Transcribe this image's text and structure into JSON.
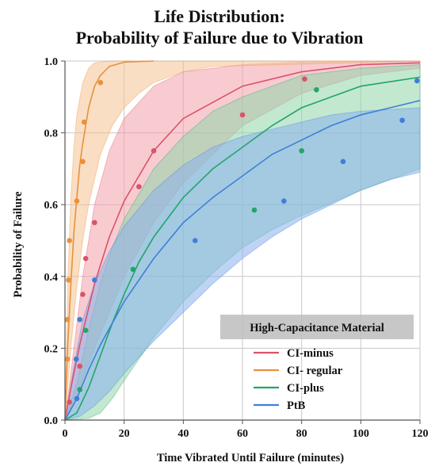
{
  "title": {
    "line1": "Life Distribution:",
    "line2": "Probability of Failure due to Vibration"
  },
  "chart_data": {
    "type": "scatter",
    "title": "Life Distribution: Probability of Failure due to Vibration",
    "xlabel": "Time Vibrated Until Failure (minutes)",
    "ylabel": "Probability of Failure",
    "xlim": [
      0,
      120
    ],
    "ylim": [
      0,
      1.0
    ],
    "xticks": [
      0,
      20,
      40,
      60,
      80,
      100,
      120
    ],
    "yticks": [
      0.0,
      0.2,
      0.4,
      0.6,
      0.8,
      1.0
    ],
    "ytick_labels": [
      "0.0",
      "0.2",
      "0.4",
      "0.6",
      "0.8",
      "1.0"
    ],
    "grid": true,
    "legend": {
      "title": "High-Capacitance Material",
      "placement": "bottom-right"
    },
    "series": [
      {
        "name": "CI-minus",
        "color": "#d9536a",
        "band_color": "#f2a0ac",
        "points": [
          [
            1.5,
            0.05
          ],
          [
            5,
            0.15
          ],
          [
            6,
            0.35
          ],
          [
            7,
            0.45
          ],
          [
            10,
            0.55
          ],
          [
            25,
            0.65
          ],
          [
            30,
            0.75
          ],
          [
            60,
            0.85
          ],
          [
            81,
            0.95
          ]
        ],
        "fit": [
          [
            0,
            0
          ],
          [
            2,
            0.09
          ],
          [
            5,
            0.21
          ],
          [
            10,
            0.38
          ],
          [
            15,
            0.51
          ],
          [
            20,
            0.61
          ],
          [
            30,
            0.75
          ],
          [
            40,
            0.84
          ],
          [
            60,
            0.93
          ],
          [
            80,
            0.97
          ],
          [
            100,
            0.99
          ],
          [
            120,
            0.995
          ]
        ],
        "band_upper": [
          [
            0,
            0
          ],
          [
            3,
            0.2
          ],
          [
            6,
            0.4
          ],
          [
            10,
            0.6
          ],
          [
            15,
            0.75
          ],
          [
            20,
            0.84
          ],
          [
            30,
            0.93
          ],
          [
            40,
            0.97
          ],
          [
            60,
            0.99
          ],
          [
            80,
            0.997
          ],
          [
            120,
            1.0
          ]
        ],
        "band_lower": [
          [
            0,
            0
          ],
          [
            5,
            0.09
          ],
          [
            10,
            0.2
          ],
          [
            20,
            0.4
          ],
          [
            30,
            0.55
          ],
          [
            40,
            0.66
          ],
          [
            60,
            0.82
          ],
          [
            80,
            0.91
          ],
          [
            100,
            0.96
          ],
          [
            120,
            0.98
          ]
        ]
      },
      {
        "name": "CI- regular",
        "color": "#e8913b",
        "band_color": "#f4c391",
        "points": [
          [
            0.8,
            0.17
          ],
          [
            0.8,
            0.28
          ],
          [
            1.2,
            0.39
          ],
          [
            1.5,
            0.5
          ],
          [
            4,
            0.61
          ],
          [
            6,
            0.72
          ],
          [
            6.5,
            0.83
          ],
          [
            12,
            0.94
          ]
        ],
        "fit": [
          [
            0,
            0
          ],
          [
            0.5,
            0.12
          ],
          [
            1,
            0.22
          ],
          [
            2,
            0.38
          ],
          [
            3,
            0.52
          ],
          [
            4,
            0.62
          ],
          [
            5,
            0.71
          ],
          [
            6,
            0.77
          ],
          [
            8,
            0.87
          ],
          [
            10,
            0.93
          ],
          [
            12,
            0.96
          ],
          [
            15,
            0.985
          ],
          [
            20,
            0.997
          ],
          [
            30,
            1.0
          ]
        ],
        "band_upper": [
          [
            0,
            0
          ],
          [
            1,
            0.4
          ],
          [
            2,
            0.62
          ],
          [
            3,
            0.76
          ],
          [
            4,
            0.85
          ],
          [
            6,
            0.94
          ],
          [
            8,
            0.98
          ],
          [
            10,
            0.995
          ],
          [
            15,
            1.0
          ],
          [
            120,
            1.0
          ]
        ],
        "band_lower": [
          [
            0,
            0
          ],
          [
            1,
            0.1
          ],
          [
            2,
            0.2
          ],
          [
            4,
            0.37
          ],
          [
            6,
            0.5
          ],
          [
            8,
            0.6
          ],
          [
            12,
            0.74
          ],
          [
            16,
            0.82
          ],
          [
            20,
            0.87
          ],
          [
            25,
            0.91
          ],
          [
            30,
            0.94
          ],
          [
            40,
            0.97
          ],
          [
            50,
            0.985
          ],
          [
            120,
            1.0
          ]
        ]
      },
      {
        "name": "CI-plus",
        "color": "#23a46c",
        "band_color": "#8fd6a9",
        "points": [
          [
            5,
            0.085
          ],
          [
            7,
            0.25
          ],
          [
            23,
            0.42
          ],
          [
            64,
            0.585
          ],
          [
            80,
            0.75
          ],
          [
            85,
            0.92
          ]
        ],
        "fit": [
          [
            0,
            0
          ],
          [
            4,
            0.02
          ],
          [
            8,
            0.09
          ],
          [
            12,
            0.18
          ],
          [
            16,
            0.27
          ],
          [
            20,
            0.35
          ],
          [
            25,
            0.44
          ],
          [
            30,
            0.51
          ],
          [
            40,
            0.62
          ],
          [
            50,
            0.7
          ],
          [
            60,
            0.76
          ],
          [
            70,
            0.82
          ],
          [
            80,
            0.87
          ],
          [
            90,
            0.9
          ],
          [
            100,
            0.93
          ],
          [
            120,
            0.955
          ]
        ],
        "band_upper": [
          [
            0,
            0
          ],
          [
            4,
            0.1
          ],
          [
            8,
            0.25
          ],
          [
            12,
            0.38
          ],
          [
            16,
            0.48
          ],
          [
            20,
            0.56
          ],
          [
            30,
            0.7
          ],
          [
            40,
            0.79
          ],
          [
            50,
            0.86
          ],
          [
            60,
            0.9
          ],
          [
            80,
            0.96
          ],
          [
            100,
            0.98
          ],
          [
            120,
            0.99
          ]
        ],
        "band_lower": [
          [
            0,
            0
          ],
          [
            8,
            0.005
          ],
          [
            12,
            0.02
          ],
          [
            16,
            0.06
          ],
          [
            20,
            0.11
          ],
          [
            25,
            0.17
          ],
          [
            30,
            0.23
          ],
          [
            40,
            0.33
          ],
          [
            50,
            0.41
          ],
          [
            60,
            0.48
          ],
          [
            70,
            0.53
          ],
          [
            80,
            0.57
          ],
          [
            100,
            0.64
          ],
          [
            120,
            0.7
          ]
        ]
      },
      {
        "name": "PtB",
        "color": "#3f7fd9",
        "band_color": "#8ab0ec",
        "points": [
          [
            4,
            0.06
          ],
          [
            3.8,
            0.17
          ],
          [
            5,
            0.28
          ],
          [
            10,
            0.39
          ],
          [
            44,
            0.5
          ],
          [
            74,
            0.61
          ],
          [
            94,
            0.72
          ],
          [
            114,
            0.835
          ],
          [
            119,
            0.945
          ]
        ],
        "fit": [
          [
            0,
            0
          ],
          [
            4,
            0.06
          ],
          [
            8,
            0.14
          ],
          [
            12,
            0.21
          ],
          [
            16,
            0.27
          ],
          [
            20,
            0.33
          ],
          [
            30,
            0.45
          ],
          [
            40,
            0.55
          ],
          [
            50,
            0.62
          ],
          [
            60,
            0.68
          ],
          [
            70,
            0.74
          ],
          [
            80,
            0.78
          ],
          [
            90,
            0.82
          ],
          [
            100,
            0.85
          ],
          [
            110,
            0.87
          ],
          [
            120,
            0.89
          ]
        ],
        "band_upper": [
          [
            0,
            0
          ],
          [
            3,
            0.15
          ],
          [
            6,
            0.28
          ],
          [
            10,
            0.38
          ],
          [
            15,
            0.47
          ],
          [
            20,
            0.54
          ],
          [
            30,
            0.64
          ],
          [
            40,
            0.71
          ],
          [
            50,
            0.76
          ],
          [
            60,
            0.79
          ],
          [
            70,
            0.81
          ],
          [
            80,
            0.83
          ],
          [
            90,
            0.85
          ],
          [
            100,
            0.86
          ],
          [
            120,
            0.87
          ]
        ],
        "band_lower": [
          [
            0,
            0
          ],
          [
            5,
            0.01
          ],
          [
            10,
            0.04
          ],
          [
            15,
            0.08
          ],
          [
            20,
            0.13
          ],
          [
            30,
            0.22
          ],
          [
            40,
            0.3
          ],
          [
            50,
            0.38
          ],
          [
            60,
            0.45
          ],
          [
            70,
            0.51
          ],
          [
            80,
            0.56
          ],
          [
            90,
            0.6
          ],
          [
            100,
            0.64
          ],
          [
            110,
            0.67
          ],
          [
            120,
            0.69
          ]
        ]
      }
    ]
  }
}
